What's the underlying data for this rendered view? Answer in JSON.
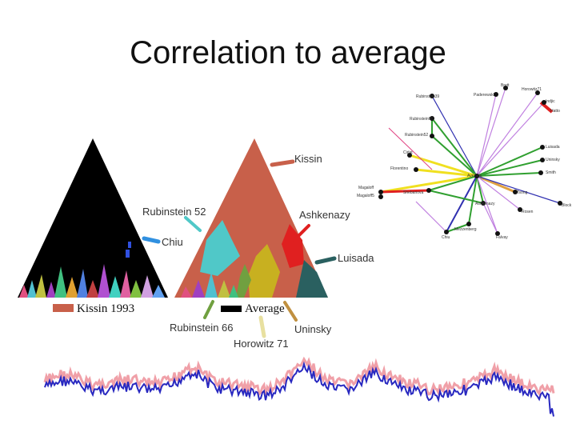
{
  "slide": {
    "title": "Correlation to average"
  },
  "colors": {
    "kissin": "#c8604a",
    "average": "#000000",
    "series_pink": "#f0a0a8",
    "series_blue": "#2828c0"
  },
  "triangle_labels": {
    "kissin": "Kissin",
    "rubinstein52": "Rubinstein 52",
    "ashkenazy": "Ashkenazy",
    "chiu": "Chiu",
    "luisada": "Luisada",
    "rubinstein66": "Rubinstein 66",
    "horowitz71": "Horowitz 71",
    "uninsky": "Uninsky"
  },
  "legend": {
    "kissin1993": "Kissin 1993",
    "average": "Average"
  },
  "network": {
    "center": "Average",
    "nodes": [
      "Rubinstein39",
      "Paderewski",
      "Brett",
      "Horowitz71",
      "Indjic",
      "Hatto",
      "Rubinstein66",
      "Rubinstein52",
      "Cidat",
      "Florentino",
      "Luisada",
      "Uninsky",
      "Smith",
      "Magaloff",
      "Magaloff5",
      "Shebanova",
      "Tsong",
      "Block",
      "Ashkenazy",
      "Rosen",
      "Mezzenberg",
      "Chiu",
      "Falvay",
      "Kissin"
    ]
  }
}
